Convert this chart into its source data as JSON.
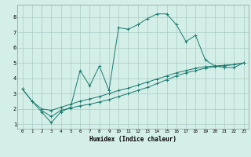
{
  "xlabel": "Humidex (Indice chaleur)",
  "bg_color": "#d4eee8",
  "grid_color": "#aaccc4",
  "line_color": "#1a7a6e",
  "xlim": [
    -0.5,
    23.5
  ],
  "ylim": [
    0.7,
    8.8
  ],
  "xticks": [
    0,
    1,
    2,
    3,
    4,
    5,
    6,
    7,
    8,
    9,
    10,
    11,
    12,
    13,
    14,
    15,
    16,
    17,
    18,
    19,
    20,
    21,
    22,
    23
  ],
  "yticks": [
    1,
    2,
    3,
    4,
    5,
    6,
    7,
    8
  ],
  "curve1_x": [
    0,
    1,
    2,
    3,
    4,
    5,
    6,
    7,
    8,
    9,
    10,
    11,
    12,
    13,
    14,
    15,
    16,
    17,
    18,
    19,
    20,
    21,
    22,
    23
  ],
  "curve1_y": [
    3.3,
    2.5,
    1.8,
    1.1,
    1.8,
    2.1,
    4.5,
    3.5,
    4.8,
    3.2,
    7.3,
    7.2,
    7.5,
    7.9,
    8.2,
    8.2,
    7.5,
    6.4,
    6.8,
    5.2,
    4.8,
    4.7,
    4.7,
    5.0
  ],
  "curve2_x": [
    0,
    1,
    2,
    3,
    4,
    5,
    6,
    7,
    8,
    9,
    10,
    11,
    12,
    13,
    14,
    15,
    16,
    17,
    18,
    19,
    20,
    21,
    22,
    23
  ],
  "curve2_y": [
    3.3,
    2.5,
    2.0,
    1.9,
    2.1,
    2.3,
    2.5,
    2.65,
    2.8,
    3.0,
    3.2,
    3.35,
    3.55,
    3.75,
    3.95,
    4.15,
    4.35,
    4.5,
    4.65,
    4.75,
    4.8,
    4.85,
    4.9,
    5.0
  ],
  "curve3_x": [
    2,
    3,
    4,
    5,
    6,
    7,
    8,
    9,
    10,
    11,
    12,
    13,
    14,
    15,
    16,
    17,
    18,
    19,
    20,
    21,
    22,
    23
  ],
  "curve3_y": [
    1.9,
    1.5,
    1.9,
    2.05,
    2.2,
    2.3,
    2.45,
    2.6,
    2.8,
    3.0,
    3.2,
    3.4,
    3.65,
    3.9,
    4.15,
    4.35,
    4.5,
    4.65,
    4.75,
    4.82,
    4.88,
    5.0
  ]
}
